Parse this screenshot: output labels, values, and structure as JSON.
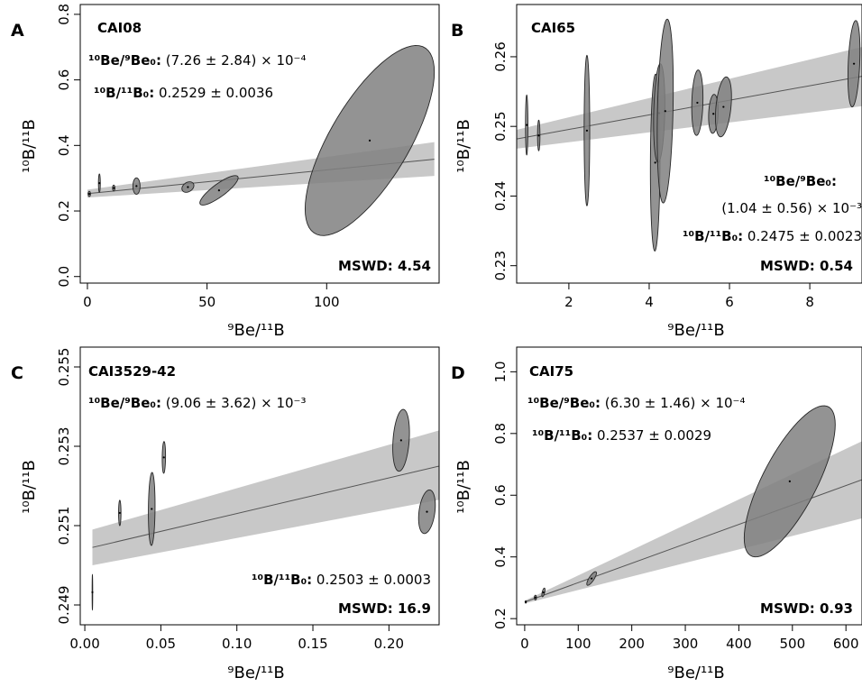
{
  "figure": {
    "panels": [
      {
        "letter": "A",
        "sample": "CAI08",
        "ann1_label": "¹⁰Be/⁹Be₀:",
        "ann1_value": "(7.26 ± 2.84) × 10⁻⁴",
        "ann2_label": "¹⁰B/¹¹B₀:",
        "ann2_value": "0.2529 ± 0.0036",
        "mswd": "MSWD: 4.54"
      },
      {
        "letter": "B",
        "sample": "CAI65",
        "ann1_label": "¹⁰Be/⁹Be₀:",
        "ann1_value": "(1.04 ± 0.56) × 10⁻³",
        "ann2_label": "¹⁰B/¹¹B₀:",
        "ann2_value": "0.2475 ± 0.0023",
        "mswd": "MSWD: 0.54"
      },
      {
        "letter": "C",
        "sample": "CAI3529-42",
        "ann1_label": "¹⁰Be/⁹Be₀:",
        "ann1_value": "(9.06 ± 3.62) × 10⁻³",
        "ann2_label": "¹⁰B/¹¹B₀:",
        "ann2_value": "0.2503 ± 0.0003",
        "mswd": "MSWD: 16.9"
      },
      {
        "letter": "D",
        "sample": "CAI75",
        "ann1_label": "¹⁰Be/⁹Be₀:",
        "ann1_value": "(6.30 ± 1.46) × 10⁻⁴",
        "ann2_label": "¹⁰B/¹¹B₀:",
        "ann2_value": "0.2537 ± 0.0029",
        "mswd": "MSWD: 0.93"
      }
    ]
  },
  "colors": {
    "ellipse_fill": "#808080",
    "ellipse_stroke": "#262626",
    "band_fill": "#c8c8c8",
    "line": "#555555"
  },
  "chart_data": [
    {
      "type": "scatter",
      "title": "CAI08",
      "xlabel": "⁹Be/¹¹B",
      "ylabel": "¹⁰B/¹¹B",
      "xlim": [
        -3,
        147
      ],
      "ylim": [
        -0.02,
        0.83
      ],
      "xticks": [
        "0",
        "50",
        "100",
        "150"
      ],
      "xtick_values": [
        0,
        50,
        100,
        150
      ],
      "yticks": [
        "0.0",
        "0.2",
        "0.4",
        "0.6",
        "0.8"
      ],
      "ytick_values": [
        0,
        0.2,
        0.4,
        0.6,
        0.8
      ],
      "fit": {
        "x": [
          0,
          145
        ],
        "y": [
          0.2529,
          0.358
        ]
      },
      "band": {
        "x": [
          0,
          145
        ],
        "upper": [
          0.265,
          0.41
        ],
        "lower": [
          0.241,
          0.307
        ]
      },
      "points": [
        {
          "x": 0.8,
          "y": 0.252,
          "sx": 0.5,
          "sy": 0.008,
          "rho": 0
        },
        {
          "x": 5,
          "y": 0.285,
          "sx": 0.4,
          "sy": 0.028,
          "rho": 0
        },
        {
          "x": 11,
          "y": 0.27,
          "sx": 0.5,
          "sy": 0.009,
          "rho": 0
        },
        {
          "x": 20.5,
          "y": 0.276,
          "sx": 1.5,
          "sy": 0.025,
          "rho": 0
        },
        {
          "x": 42,
          "y": 0.273,
          "sx": 2.5,
          "sy": 0.016,
          "rho": 0.3
        },
        {
          "x": 55,
          "y": 0.263,
          "sx": 8,
          "sy": 0.045,
          "rho": 0.85
        },
        {
          "x": 118,
          "y": 0.415,
          "sx": 27,
          "sy": 0.29,
          "rho": 0.72
        }
      ]
    },
    {
      "type": "scatter",
      "title": "CAI65",
      "xlabel": "⁹Be/¹¹B",
      "ylabel": "¹⁰B/¹¹B",
      "xlim": [
        0.7,
        9.3
      ],
      "ylim": [
        0.2275,
        0.2675
      ],
      "xticks": [
        "2",
        "4",
        "6",
        "8"
      ],
      "xtick_values": [
        2,
        4,
        6,
        8
      ],
      "yticks": [
        "0.23",
        "0.24",
        "0.25",
        "0.26"
      ],
      "ytick_values": [
        0.23,
        0.24,
        0.25,
        0.26
      ],
      "fit": {
        "x": [
          0.7,
          9.3
        ],
        "y": [
          0.2482,
          0.2572
        ]
      },
      "band": {
        "x": [
          0.7,
          9.3
        ],
        "upper": [
          0.2495,
          0.2614
        ],
        "lower": [
          0.2468,
          0.2529
        ]
      },
      "points": [
        {
          "x": 0.95,
          "y": 0.2502,
          "sx": 0.03,
          "sy": 0.0043,
          "rho": 0
        },
        {
          "x": 1.25,
          "y": 0.2487,
          "sx": 0.03,
          "sy": 0.0022,
          "rho": 0
        },
        {
          "x": 2.45,
          "y": 0.2494,
          "sx": 0.07,
          "sy": 0.0108,
          "rho": 0
        },
        {
          "x": 4.15,
          "y": 0.2448,
          "sx": 0.12,
          "sy": 0.0127,
          "rho": 0.08
        },
        {
          "x": 4.25,
          "y": 0.2519,
          "sx": 0.14,
          "sy": 0.0071,
          "rho": 0.2
        },
        {
          "x": 4.4,
          "y": 0.2522,
          "sx": 0.2,
          "sy": 0.0132,
          "rho": 0.25
        },
        {
          "x": 5.2,
          "y": 0.2534,
          "sx": 0.14,
          "sy": 0.0047,
          "rho": 0.15
        },
        {
          "x": 5.6,
          "y": 0.2518,
          "sx": 0.12,
          "sy": 0.0028,
          "rho": 0.15
        },
        {
          "x": 5.85,
          "y": 0.2528,
          "sx": 0.2,
          "sy": 0.0043,
          "rho": 0.35
        },
        {
          "x": 9.1,
          "y": 0.259,
          "sx": 0.15,
          "sy": 0.0062,
          "rho": 0.3
        }
      ]
    },
    {
      "type": "scatter",
      "title": "CAI3529-42",
      "xlabel": "⁹Be/¹¹B",
      "ylabel": "¹⁰B/¹¹B",
      "xlim": [
        -0.003,
        0.233
      ],
      "ylim": [
        0.2485,
        0.2555
      ],
      "xticks": [
        "0.00",
        "0.05",
        "0.10",
        "0.15",
        "0.20"
      ],
      "xtick_values": [
        0,
        0.05,
        0.1,
        0.15,
        0.2
      ],
      "yticks": [
        "0.249",
        "0.251",
        "0.253",
        "0.255"
      ],
      "ytick_values": [
        0.249,
        0.251,
        0.253,
        0.255
      ],
      "fit": {
        "x": [
          0.005,
          0.233
        ],
        "y": [
          0.25045,
          0.2525
        ]
      },
      "band": {
        "x": [
          0.005,
          0.233
        ],
        "upper": [
          0.2509,
          0.2534
        ],
        "lower": [
          0.25,
          0.25165
        ]
      },
      "points": [
        {
          "x": 0.005,
          "y": 0.24932,
          "sx": 0.0002,
          "sy": 0.00044,
          "rho": 0
        },
        {
          "x": 0.023,
          "y": 0.25132,
          "sx": 0.0008,
          "sy": 0.00032,
          "rho": 0
        },
        {
          "x": 0.044,
          "y": 0.25142,
          "sx": 0.0022,
          "sy": 0.00092,
          "rho": 0.1
        },
        {
          "x": 0.052,
          "y": 0.25272,
          "sx": 0.0011,
          "sy": 0.0004,
          "rho": 0.1
        },
        {
          "x": 0.208,
          "y": 0.25315,
          "sx": 0.0055,
          "sy": 0.00078,
          "rho": 0.25
        },
        {
          "x": 0.225,
          "y": 0.25135,
          "sx": 0.0055,
          "sy": 0.00055,
          "rho": 0.3
        }
      ]
    },
    {
      "type": "scatter",
      "title": "CAI75",
      "xlabel": "⁹Be/¹¹B",
      "ylabel": "¹⁰B/¹¹B",
      "xlim": [
        -15,
        630
      ],
      "ylim": [
        0.18,
        1.08
      ],
      "xticks": [
        "0",
        "100",
        "200",
        "300",
        "400",
        "500",
        "600"
      ],
      "xtick_values": [
        0,
        100,
        200,
        300,
        400,
        500,
        600
      ],
      "yticks": [
        "0.2",
        "0.4",
        "0.6",
        "0.8",
        "1.0"
      ],
      "ytick_values": [
        0.2,
        0.4,
        0.6,
        0.8,
        1.0
      ],
      "fit": {
        "x": [
          0,
          630
        ],
        "y": [
          0.2537,
          0.65
        ]
      },
      "band": {
        "x": [
          0,
          630
        ],
        "upper": [
          0.258,
          0.775
        ],
        "lower": [
          0.249,
          0.525
        ]
      },
      "points": [
        {
          "x": 2,
          "y": 0.254,
          "sx": 1,
          "sy": 0.004,
          "rho": 0
        },
        {
          "x": 20,
          "y": 0.268,
          "sx": 2,
          "sy": 0.008,
          "rho": 0
        },
        {
          "x": 35,
          "y": 0.285,
          "sx": 3,
          "sy": 0.014,
          "rho": 0.6
        },
        {
          "x": 125,
          "y": 0.33,
          "sx": 9,
          "sy": 0.022,
          "rho": 0.8
        },
        {
          "x": 495,
          "y": 0.645,
          "sx": 85,
          "sy": 0.245,
          "rho": 0.75
        }
      ]
    }
  ]
}
